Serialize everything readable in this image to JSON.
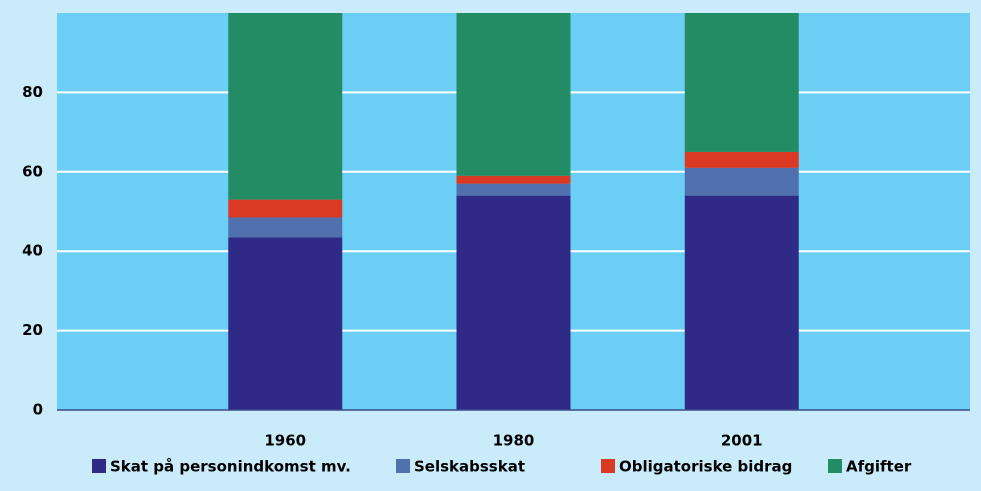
{
  "chart_data": {
    "type": "stacked_bar",
    "categories": [
      "1960",
      "1980",
      "2001"
    ],
    "series": [
      {
        "name": "Skat på personindkomst mv.",
        "color": "#2e2a85",
        "values": [
          43.5,
          54,
          54
        ]
      },
      {
        "name": "Selskabsskat",
        "color": "#5170ae",
        "values": [
          5,
          3,
          7
        ]
      },
      {
        "name": "Obligatoriske bidrag",
        "color": "#da3a24",
        "values": [
          4.5,
          2,
          4
        ]
      },
      {
        "name": "Afgifter",
        "color": "#238c64",
        "values": [
          47,
          41,
          35
        ]
      }
    ],
    "ylim": [
      0,
      100
    ],
    "yticks": [
      0,
      20,
      40,
      60,
      80
    ],
    "grid": true,
    "legend": "bottom"
  }
}
